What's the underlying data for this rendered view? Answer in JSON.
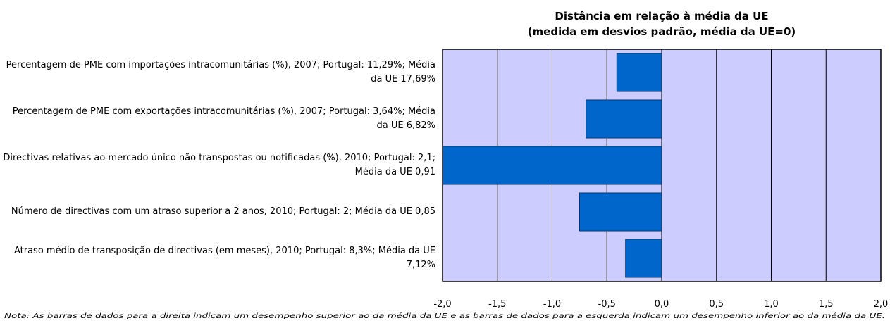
{
  "chart_data": {
    "type": "bar",
    "orientation": "horizontal",
    "title": "Distância em relação à média da UE",
    "subtitle": "(medida em desvios padrão, média da UE=0)",
    "categories": [
      "Percentagem de PME com importações intracomunitárias (%), 2007; Portugal: 11,29%; Média da UE 17,69%",
      "Percentagem de PME com exportações intracomunitárias (%), 2007; Portugal: 3,64%; Média da UE 6,82%",
      "Directivas relativas ao mercado único não transpostas ou notificadas (%), 2010; Portugal: 2,1; Média da UE 0,91",
      "Número de directivas com um atraso superior a 2 anos, 2010; Portugal: 2; Média da UE 0,85",
      "Atraso médio de transposição de directivas (em meses), 2010; Portugal: 8,3%; Média da UE 7,12%"
    ],
    "values": [
      -0.41,
      -0.69,
      -2.0,
      -0.75,
      -0.33
    ],
    "color": "#0066cc",
    "background": "#ccccff",
    "xlim": [
      -2,
      2
    ],
    "xticks": [
      {
        "value": -2,
        "label": "-2,0"
      },
      {
        "value": -1.5,
        "label": "-1,5"
      },
      {
        "value": -1,
        "label": "-1,0"
      },
      {
        "value": -0.5,
        "label": "-0,5"
      },
      {
        "value": 0,
        "label": "0,0"
      },
      {
        "value": 0.5,
        "label": "0,5"
      },
      {
        "value": 1,
        "label": "1,0"
      },
      {
        "value": 1.5,
        "label": "1,5"
      },
      {
        "value": 2,
        "label": "2,0"
      }
    ],
    "grid": true,
    "note": "Nota: As barras de dados para a direita indicam um desempenho superior ao da média da UE e as barras de dados para a esquerda indicam um desempenho inferior ao da média da UE."
  }
}
